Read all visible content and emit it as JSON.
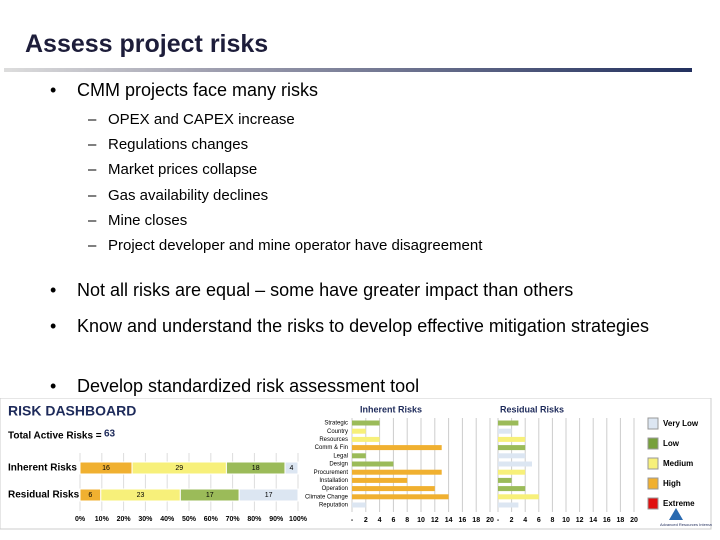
{
  "header": {
    "title": "Assess project risks"
  },
  "bullets": [
    {
      "text": "CMM projects face many risks",
      "subs": [
        "OPEX and CAPEX increase",
        "Regulations changes",
        "Market prices collapse",
        "Gas availability declines",
        "Mine closes",
        "Project developer and mine operator have disagreement"
      ]
    },
    {
      "text": "Not all risks are equal – some have greater impact than others",
      "subs": []
    },
    {
      "text": "Know and understand the risks to develop effective mitigation strategies",
      "subs": []
    },
    {
      "text": "Develop standardized risk assessment tool",
      "subs": []
    }
  ],
  "dashboard": {
    "title": "RISK DASHBOARD",
    "total_label": "Total Active Risks =",
    "total": 63,
    "levels": [
      {
        "name": "Very Low",
        "color": "#dce6f2"
      },
      {
        "name": "Low",
        "color": "#77a03c"
      },
      {
        "name": "Medium",
        "color": "#f7f07a"
      },
      {
        "name": "High",
        "color": "#f0b030"
      },
      {
        "name": "Extreme",
        "color": "#e01010"
      }
    ],
    "summary": {
      "categories": [
        "Inherent Risks",
        "Residual Risks"
      ],
      "series": [
        {
          "colors": [
            "#f0b030",
            "#f7f07a",
            "#9bbb59",
            "#dce6f2"
          ],
          "values": [
            [
              16,
              29,
              18,
              4
            ],
            [
              6,
              23,
              17,
              17
            ]
          ]
        }
      ],
      "xticks": [
        {
          "value": 0,
          "label": "0%"
        },
        {
          "value": 10,
          "label": "10%"
        },
        {
          "value": 20,
          "label": "20%"
        },
        {
          "value": 30,
          "label": "30%"
        },
        {
          "value": 40,
          "label": "40%"
        },
        {
          "value": 50,
          "label": "50%"
        },
        {
          "value": 60,
          "label": "60%"
        },
        {
          "value": 70,
          "label": "70%"
        },
        {
          "value": 80,
          "label": "80%"
        },
        {
          "value": 90,
          "label": "90%"
        },
        {
          "value": 100,
          "label": "100%"
        }
      ]
    },
    "detail": {
      "categories": [
        "Strategic",
        "Country",
        "Resources",
        "Comm & Fin",
        "Legal",
        "Design",
        "Procurement",
        "Installation",
        "Operation",
        "Climate Change",
        "Reputation"
      ],
      "charts": [
        {
          "title": "Inherent Risks",
          "values": [
            4,
            2,
            4,
            13,
            2,
            6,
            13,
            8,
            12,
            14,
            2
          ],
          "colors": [
            "#9bbb59",
            "#f7f07a",
            "#f7f07a",
            "#f0b030",
            "#9bbb59",
            "#9bbb59",
            "#f0b030",
            "#f0b030",
            "#f0b030",
            "#f0b030",
            "#dce6f2"
          ]
        },
        {
          "title": "Residual Risks",
          "values": [
            3,
            2,
            4,
            4,
            4,
            5,
            4,
            2,
            4,
            6,
            3
          ],
          "colors": [
            "#9bbb59",
            "#dce6f2",
            "#f7f07a",
            "#9bbb59",
            "#dce6f2",
            "#dce6f2",
            "#f7f07a",
            "#9bbb59",
            "#9bbb59",
            "#f7f07a",
            "#dce6f2"
          ]
        }
      ],
      "xlim": [
        0,
        20
      ],
      "xticks": [
        {
          "value": 0,
          "label": "-"
        },
        2,
        4,
        6,
        8,
        10,
        12,
        14,
        16,
        18,
        20
      ]
    },
    "logo": "Advanced Resources International, Inc."
  }
}
